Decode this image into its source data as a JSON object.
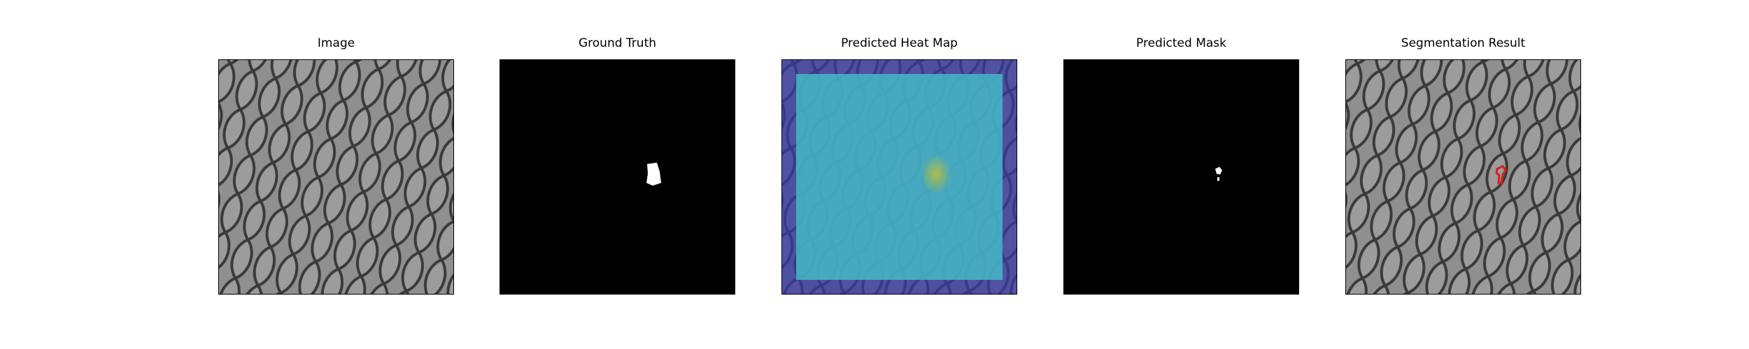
{
  "panels": [
    {
      "title": "Image"
    },
    {
      "title": "Ground Truth"
    },
    {
      "title": "Predicted Heat Map"
    },
    {
      "title": "Predicted Mask"
    },
    {
      "title": "Segmentation Result"
    }
  ],
  "colors": {
    "background": "#ffffff",
    "mesh_base": "#8f8f8f",
    "mesh_line": "#3a3a3a",
    "mask_background": "#000000",
    "mask_foreground": "#ffffff",
    "heat_low": "#3a3aa6",
    "heat_mid": "#45b9c4",
    "defect_overlay": "#d81e1e"
  }
}
